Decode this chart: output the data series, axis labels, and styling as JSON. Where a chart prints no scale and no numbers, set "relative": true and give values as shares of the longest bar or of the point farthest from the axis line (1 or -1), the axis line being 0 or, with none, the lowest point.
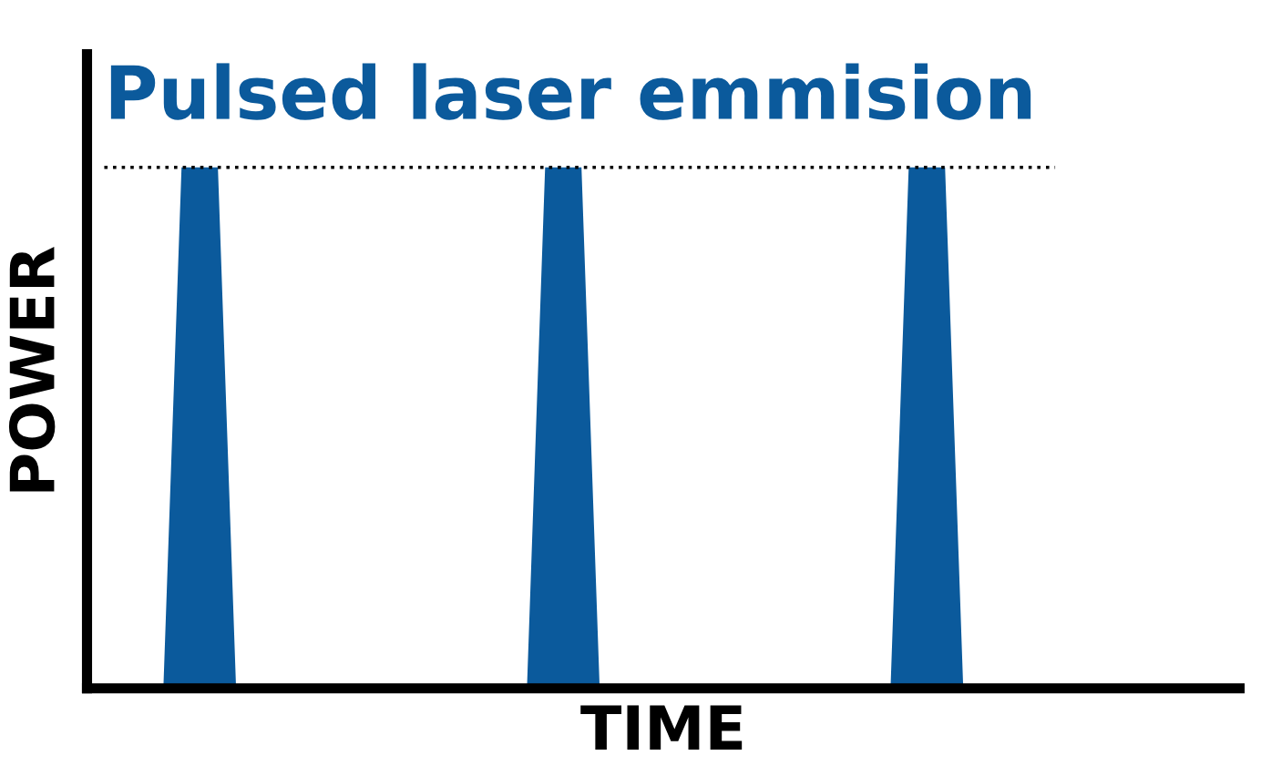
{
  "chart_data": {
    "type": "area",
    "title": "Pulsed laser emmision",
    "xlabel": "TIME",
    "ylabel": "POWER",
    "relative": true,
    "categories": [
      null,
      null,
      null,
      null,
      null,
      null,
      null,
      null,
      null,
      null,
      null,
      null,
      null,
      null,
      null,
      null,
      null,
      null,
      null,
      null,
      null,
      null,
      null,
      null,
      null,
      null,
      null,
      null,
      null,
      null,
      null,
      null,
      null,
      null,
      null,
      null,
      null,
      null,
      null,
      null,
      null,
      null,
      null,
      null,
      null,
      null,
      null,
      null,
      null,
      null,
      null,
      null,
      null,
      null,
      null,
      null,
      null,
      null,
      null,
      null,
      null,
      null,
      null,
      null
    ],
    "series": [
      {
        "color": "#0b5a9c",
        "values": [
          0,
          0,
          0,
          0,
          0,
          1,
          1,
          1,
          0,
          0,
          0,
          0,
          0,
          0,
          0,
          0,
          0,
          0,
          0,
          0,
          0,
          0,
          0,
          0,
          0,
          1,
          1,
          1,
          0,
          0,
          0,
          0,
          0,
          0,
          0,
          0,
          0,
          0,
          0,
          0,
          0,
          0,
          0,
          0,
          0,
          1,
          1,
          1,
          0,
          0,
          0,
          0,
          0,
          0,
          0,
          0,
          0,
          0,
          0,
          0,
          0,
          0,
          0,
          0
        ]
      }
    ],
    "ref_lines": [
      {
        "axis": "y",
        "value": 1,
        "line_style": "dotted",
        "color": "#000000"
      }
    ],
    "legend": false,
    "tick_labels": false
  }
}
